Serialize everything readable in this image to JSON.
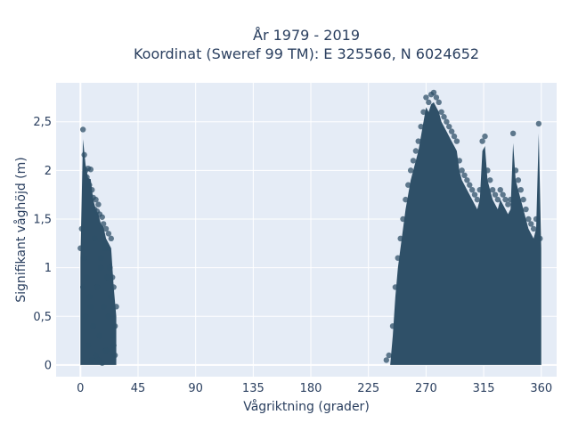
{
  "chart_data": {
    "type": "scatter",
    "title_line1": "År 1979 - 2019",
    "title_line2": "Koordinat (Sweref 99 TM): E 325566, N 6024652",
    "xlabel": "Vågriktning (grader)",
    "ylabel": "Signifikant våghöjd (m)",
    "xlim": [
      -19,
      372
    ],
    "ylim": [
      -0.12,
      2.9
    ],
    "x_ticks": [
      0,
      45,
      90,
      135,
      180,
      225,
      270,
      315,
      360
    ],
    "x_tick_labels": [
      "0",
      "45",
      "90",
      "135",
      "180",
      "225",
      "270",
      "315",
      "360"
    ],
    "y_ticks": [
      0,
      0.5,
      1,
      1.5,
      2,
      2.5
    ],
    "y_tick_labels": [
      "0",
      "0,5",
      "1",
      "1,5",
      "2",
      "2,5"
    ],
    "grid": true,
    "legend": "none",
    "marker_color": "#2f5068",
    "plot_bgcolor": "#e5ecf6",
    "series": [
      {
        "x": [
          2,
          3,
          4,
          6,
          8,
          5,
          7,
          9,
          10,
          12,
          14,
          11,
          13,
          15,
          17,
          18,
          20,
          22,
          24,
          19,
          21,
          16,
          23,
          25,
          26,
          28,
          27,
          1,
          0,
          2,
          4,
          6,
          9,
          12,
          15,
          18,
          21,
          24,
          26,
          3,
          5,
          8,
          10,
          13,
          16,
          19,
          22,
          25,
          27,
          14,
          17,
          11,
          20,
          7
        ],
        "y": [
          2.42,
          2.16,
          2.0,
          2.02,
          2.01,
          1.93,
          1.85,
          1.8,
          1.72,
          1.7,
          1.65,
          1.6,
          1.58,
          1.55,
          1.52,
          1.45,
          1.4,
          1.35,
          1.3,
          1.25,
          1.2,
          1.1,
          1.0,
          0.9,
          0.8,
          0.6,
          0.4,
          1.4,
          1.2,
          0.8,
          0.5,
          0.2,
          0.05,
          0.1,
          0.3,
          0.6,
          0.9,
          0.7,
          0.2,
          1.1,
          0.9,
          0.6,
          0.4,
          0.8,
          1.0,
          1.2,
          0.5,
          0.3,
          0.1,
          0.05,
          0.02,
          1.3,
          0.15,
          0.7
        ]
      },
      {
        "x": [
          239,
          241,
          244,
          246,
          248,
          250,
          252,
          254,
          256,
          258,
          260,
          262,
          264,
          266,
          268,
          270,
          272,
          274,
          276,
          278,
          280,
          282,
          284,
          286,
          288,
          290,
          292,
          294,
          296,
          298,
          300,
          302,
          304,
          306,
          308,
          310,
          312,
          314,
          316,
          318,
          320,
          322,
          324,
          326,
          328,
          330,
          332,
          334,
          336,
          338,
          340,
          342,
          344,
          346,
          348,
          350,
          352,
          354,
          356,
          358,
          359
        ],
        "y": [
          0.05,
          0.1,
          0.4,
          0.8,
          1.1,
          1.3,
          1.5,
          1.7,
          1.85,
          2.0,
          2.1,
          2.2,
          2.3,
          2.45,
          2.6,
          2.75,
          2.7,
          2.78,
          2.8,
          2.75,
          2.7,
          2.6,
          2.55,
          2.5,
          2.45,
          2.4,
          2.35,
          2.3,
          2.1,
          2.0,
          1.95,
          1.9,
          1.85,
          1.8,
          1.75,
          1.7,
          1.8,
          2.3,
          2.35,
          2.0,
          1.9,
          1.8,
          1.75,
          1.7,
          1.8,
          1.75,
          1.7,
          1.65,
          1.7,
          2.38,
          2.0,
          1.9,
          1.8,
          1.7,
          1.6,
          1.5,
          1.45,
          1.4,
          1.5,
          2.48,
          1.3
        ]
      }
    ]
  }
}
